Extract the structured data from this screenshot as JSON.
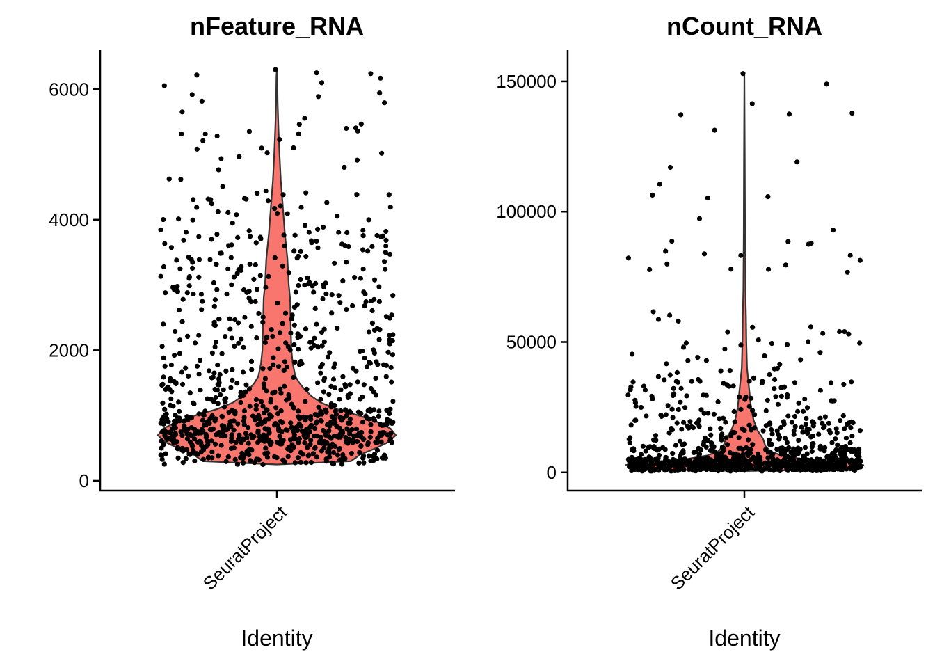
{
  "chart_data": [
    {
      "type": "violin",
      "title": "nFeature_RNA",
      "xlabel": "Identity",
      "ylabel": "",
      "categories": [
        "SeuratProject"
      ],
      "ylim": [
        -150,
        6600
      ],
      "yticks": [
        0,
        2000,
        4000,
        6000
      ],
      "ytick_labels": [
        "0",
        "2000",
        "4000",
        "6000"
      ],
      "grid": false,
      "legend": "none",
      "fill_color": "#F8766D",
      "outline_color": "#333333",
      "point_color": "#000000",
      "violin_profile": [
        [
          250,
          0.0
        ],
        [
          300,
          0.56
        ],
        [
          400,
          0.63
        ],
        [
          500,
          0.75
        ],
        [
          600,
          0.85
        ],
        [
          700,
          0.9
        ],
        [
          800,
          0.86
        ],
        [
          900,
          0.76
        ],
        [
          1000,
          0.62
        ],
        [
          1100,
          0.45
        ],
        [
          1200,
          0.33
        ],
        [
          1300,
          0.26
        ],
        [
          1400,
          0.21
        ],
        [
          1500,
          0.17
        ],
        [
          1600,
          0.14
        ],
        [
          1800,
          0.12
        ],
        [
          2000,
          0.11
        ],
        [
          2400,
          0.105
        ],
        [
          2800,
          0.1
        ],
        [
          3000,
          0.09
        ],
        [
          3400,
          0.08
        ],
        [
          3800,
          0.06
        ],
        [
          4200,
          0.045
        ],
        [
          4600,
          0.03
        ],
        [
          5000,
          0.02
        ],
        [
          5400,
          0.012
        ],
        [
          5800,
          0.006
        ],
        [
          6200,
          0.003
        ],
        [
          6300,
          0.0
        ]
      ],
      "point_distribution": [
        {
          "range": [
            250,
            500
          ],
          "count": 110
        },
        {
          "range": [
            500,
            800
          ],
          "count": 230
        },
        {
          "range": [
            800,
            1100
          ],
          "count": 180
        },
        {
          "range": [
            1100,
            1600
          ],
          "count": 110
        },
        {
          "range": [
            1600,
            2500
          ],
          "count": 130
        },
        {
          "range": [
            2500,
            3500
          ],
          "count": 115
        },
        {
          "range": [
            3500,
            4500
          ],
          "count": 75
        },
        {
          "range": [
            4500,
            5500
          ],
          "count": 25
        },
        {
          "range": [
            5500,
            6300
          ],
          "count": 13
        }
      ],
      "max_point": 6300,
      "min_point": 250
    },
    {
      "type": "violin",
      "title": "nCount_RNA",
      "xlabel": "Identity",
      "ylabel": "",
      "categories": [
        "SeuratProject"
      ],
      "ylim": [
        -7000,
        162000
      ],
      "yticks": [
        0,
        50000,
        100000,
        150000
      ],
      "ytick_labels": [
        "0",
        "50000",
        "100000",
        "150000"
      ],
      "grid": false,
      "legend": "none",
      "fill_color": "#F8766D",
      "outline_color": "#333333",
      "point_color": "#000000",
      "violin_profile": [
        [
          500,
          0.0
        ],
        [
          1000,
          0.55
        ],
        [
          2000,
          0.85
        ],
        [
          2800,
          0.9
        ],
        [
          3800,
          0.75
        ],
        [
          5000,
          0.45
        ],
        [
          6500,
          0.28
        ],
        [
          8000,
          0.2
        ],
        [
          10000,
          0.16
        ],
        [
          13000,
          0.14
        ],
        [
          16000,
          0.1
        ],
        [
          20000,
          0.07
        ],
        [
          25000,
          0.05
        ],
        [
          30000,
          0.04
        ],
        [
          35000,
          0.03
        ],
        [
          40000,
          0.02
        ],
        [
          50000,
          0.015
        ],
        [
          60000,
          0.012
        ],
        [
          70000,
          0.008
        ],
        [
          90000,
          0.005
        ],
        [
          120000,
          0.003
        ],
        [
          153000,
          0.0
        ]
      ],
      "point_distribution": [
        {
          "range": [
            500,
            5000
          ],
          "count": 560
        },
        {
          "range": [
            5000,
            10000
          ],
          "count": 170
        },
        {
          "range": [
            10000,
            20000
          ],
          "count": 120
        },
        {
          "range": [
            20000,
            35000
          ],
          "count": 85
        },
        {
          "range": [
            35000,
            55000
          ],
          "count": 35
        },
        {
          "range": [
            55000,
            90000
          ],
          "count": 22
        },
        {
          "range": [
            90000,
            125000
          ],
          "count": 8
        },
        {
          "range": [
            125000,
            153000
          ],
          "count": 6
        }
      ],
      "max_point": 153000,
      "min_point": 500
    }
  ]
}
